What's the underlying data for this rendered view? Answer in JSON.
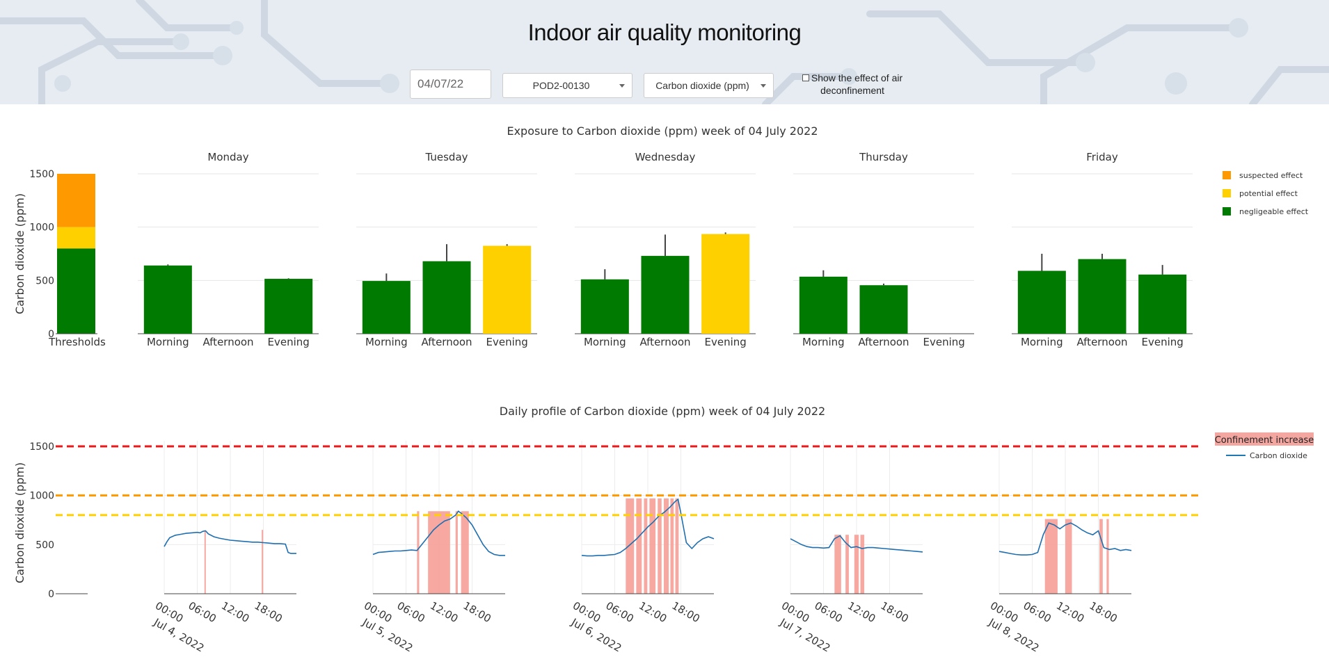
{
  "header": {
    "title": "Indoor air quality monitoring",
    "date_value": "04/07/22",
    "pod_select": "POD2-00130",
    "pollutant_select": "Carbon dioxide (ppm)",
    "deconfinement_checkbox_label": "Show the effect of air deconfinement",
    "deconfinement_checked": false
  },
  "chart_data": [
    {
      "type": "bar",
      "title": "Exposure to Carbon dioxide (ppm) week of 04 July 2022",
      "ylabel": "Carbon dioxide (ppm)",
      "ylim": [
        0,
        1500
      ],
      "yticks": [
        "0",
        "500",
        "1000",
        "1500"
      ],
      "thresholds": {
        "label": "Thresholds",
        "bands": [
          {
            "name": "negligeable effect",
            "from": 0,
            "to": 800,
            "color": "#007a00"
          },
          {
            "name": "potential effect",
            "from": 800,
            "to": 1000,
            "color": "#ffd000"
          },
          {
            "name": "suspected effect",
            "from": 1000,
            "to": 1500,
            "color": "#ff9900"
          }
        ]
      },
      "legend": [
        {
          "name": "suspected effect",
          "color": "#ff9900"
        },
        {
          "name": "potential effect",
          "color": "#ffd000"
        },
        {
          "name": "negligeable effect",
          "color": "#007a00"
        }
      ],
      "legend_position": "right",
      "categories": [
        "Morning",
        "Afternoon",
        "Evening"
      ],
      "days": [
        {
          "name": "Monday",
          "values": [
            640,
            null,
            515
          ],
          "errors": [
            10,
            null,
            5
          ],
          "colors": [
            "#007a00",
            null,
            "#007a00"
          ]
        },
        {
          "name": "Tuesday",
          "values": [
            495,
            680,
            825
          ],
          "errors": [
            70,
            160,
            15
          ],
          "colors": [
            "#007a00",
            "#007a00",
            "#ffd000"
          ]
        },
        {
          "name": "Wednesday",
          "values": [
            510,
            730,
            935
          ],
          "errors": [
            95,
            200,
            15
          ],
          "colors": [
            "#007a00",
            "#007a00",
            "#ffd000"
          ]
        },
        {
          "name": "Thursday",
          "values": [
            535,
            455,
            null
          ],
          "errors": [
            60,
            15,
            null
          ],
          "colors": [
            "#007a00",
            "#007a00",
            null
          ]
        },
        {
          "name": "Friday",
          "values": [
            590,
            700,
            555
          ],
          "errors": [
            160,
            50,
            90
          ],
          "colors": [
            "#007a00",
            "#007a00",
            "#007a00"
          ]
        }
      ]
    },
    {
      "type": "line",
      "title": "Daily profile of Carbon dioxide (ppm) week of 04 July 2022",
      "ylabel": "Carbon dioxide (ppm)",
      "ylim": [
        0,
        1500
      ],
      "yticks": [
        "0",
        "500",
        "1000",
        "1500"
      ],
      "threshold_lines": [
        {
          "value": 1500,
          "color": "#e8191b"
        },
        {
          "value": 1000,
          "color": "#ff9900"
        },
        {
          "value": 800,
          "color": "#ffd000"
        }
      ],
      "legend": [
        {
          "name": "Confinement increase",
          "color": "#f4a6a0"
        },
        {
          "name": "Carbon dioxide",
          "color": "#1f77b4"
        }
      ],
      "legend_position": "top-right",
      "xticks": [
        "00:00",
        "06:00",
        "12:00",
        "18:00"
      ],
      "days": [
        {
          "date_label": "Jul 4, 2022",
          "series": [
            [
              0,
              480
            ],
            [
              0.5,
              530
            ],
            [
              1,
              570
            ],
            [
              2,
              595
            ],
            [
              3,
              605
            ],
            [
              4,
              615
            ],
            [
              5,
              620
            ],
            [
              6,
              625
            ],
            [
              6.5,
              620
            ],
            [
              7,
              635
            ],
            [
              7.5,
              640
            ],
            [
              8,
              610
            ],
            [
              9,
              580
            ],
            [
              10,
              565
            ],
            [
              11,
              555
            ],
            [
              12,
              545
            ],
            [
              13,
              540
            ],
            [
              14,
              535
            ],
            [
              15,
              530
            ],
            [
              16,
              525
            ],
            [
              17,
              525
            ],
            [
              18,
              520
            ],
            [
              19,
              515
            ],
            [
              20,
              510
            ],
            [
              21,
              510
            ],
            [
              22,
              505
            ],
            [
              22.5,
              420
            ],
            [
              23,
              410
            ],
            [
              24,
              410
            ]
          ],
          "confinement": [
            [
              7.3,
              7.5,
              640
            ],
            [
              17.7,
              17.9,
              650
            ]
          ]
        },
        {
          "date_label": "Jul 5, 2022",
          "series": [
            [
              0,
              400
            ],
            [
              1,
              420
            ],
            [
              2,
              425
            ],
            [
              3,
              430
            ],
            [
              4,
              435
            ],
            [
              5,
              435
            ],
            [
              6,
              440
            ],
            [
              7,
              445
            ],
            [
              8,
              440
            ],
            [
              9,
              510
            ],
            [
              10,
              580
            ],
            [
              11,
              650
            ],
            [
              12,
              700
            ],
            [
              13,
              740
            ],
            [
              14,
              760
            ],
            [
              15,
              800
            ],
            [
              15.5,
              840
            ],
            [
              16,
              820
            ],
            [
              17,
              770
            ],
            [
              18,
              700
            ],
            [
              19,
              600
            ],
            [
              20,
              500
            ],
            [
              21,
              430
            ],
            [
              22,
              400
            ],
            [
              23,
              390
            ],
            [
              24,
              390
            ]
          ],
          "confinement": [
            [
              8,
              8.4,
              840
            ],
            [
              10,
              14,
              840
            ],
            [
              15,
              15.4,
              840
            ],
            [
              16,
              17.4,
              840
            ]
          ]
        },
        {
          "date_label": "Jul 6, 2022",
          "series": [
            [
              0,
              390
            ],
            [
              1,
              385
            ],
            [
              2,
              385
            ],
            [
              3,
              390
            ],
            [
              4,
              390
            ],
            [
              5,
              395
            ],
            [
              6,
              400
            ],
            [
              7,
              420
            ],
            [
              8,
              460
            ],
            [
              9,
              510
            ],
            [
              10,
              560
            ],
            [
              11,
              620
            ],
            [
              12,
              680
            ],
            [
              13,
              730
            ],
            [
              14,
              790
            ],
            [
              15,
              830
            ],
            [
              16,
              880
            ],
            [
              17,
              940
            ],
            [
              17.5,
              960
            ],
            [
              18,
              820
            ],
            [
              19,
              520
            ],
            [
              20,
              460
            ],
            [
              21,
              520
            ],
            [
              22,
              560
            ],
            [
              23,
              580
            ],
            [
              24,
              560
            ]
          ],
          "confinement": [
            [
              8,
              9.5,
              970
            ],
            [
              9.9,
              10.9,
              970
            ],
            [
              11.3,
              11.9,
              970
            ],
            [
              12.3,
              13.4,
              970
            ],
            [
              13.8,
              14.5,
              970
            ],
            [
              14.9,
              15.8,
              970
            ],
            [
              16.1,
              16.7,
              970
            ],
            [
              17,
              17.6,
              970
            ]
          ]
        },
        {
          "date_label": "Jul 7, 2022",
          "series": [
            [
              0,
              560
            ],
            [
              1,
              530
            ],
            [
              2,
              500
            ],
            [
              3,
              480
            ],
            [
              4,
              470
            ],
            [
              5,
              470
            ],
            [
              6,
              465
            ],
            [
              7,
              470
            ],
            [
              8,
              560
            ],
            [
              9,
              590
            ],
            [
              10,
              520
            ],
            [
              11,
              470
            ],
            [
              12,
              480
            ],
            [
              13,
              460
            ],
            [
              14,
              470
            ],
            [
              15,
              470
            ],
            [
              16,
              465
            ],
            [
              17,
              460
            ],
            [
              18,
              455
            ],
            [
              19,
              450
            ],
            [
              20,
              445
            ],
            [
              21,
              440
            ],
            [
              22,
              435
            ],
            [
              23,
              430
            ],
            [
              24,
              425
            ]
          ],
          "confinement": [
            [
              8,
              9.2,
              600
            ],
            [
              10,
              10.6,
              600
            ],
            [
              11.6,
              12.4,
              600
            ],
            [
              12.7,
              13.4,
              600
            ]
          ]
        },
        {
          "date_label": "Jul 8, 2022",
          "series": [
            [
              0,
              430
            ],
            [
              1,
              420
            ],
            [
              2,
              410
            ],
            [
              3,
              400
            ],
            [
              4,
              395
            ],
            [
              5,
              395
            ],
            [
              6,
              400
            ],
            [
              7,
              420
            ],
            [
              8,
              600
            ],
            [
              9,
              720
            ],
            [
              10,
              700
            ],
            [
              11,
              660
            ],
            [
              12,
              700
            ],
            [
              13,
              720
            ],
            [
              14,
              690
            ],
            [
              15,
              650
            ],
            [
              16,
              620
            ],
            [
              17,
              600
            ],
            [
              18,
              640
            ],
            [
              19,
              470
            ],
            [
              20,
              450
            ],
            [
              21,
              460
            ],
            [
              22,
              440
            ],
            [
              23,
              450
            ],
            [
              24,
              440
            ]
          ],
          "confinement": [
            [
              8.3,
              10.6,
              760
            ],
            [
              12,
              13.2,
              760
            ],
            [
              18.2,
              18.8,
              760
            ],
            [
              19.5,
              19.9,
              760
            ]
          ]
        }
      ]
    }
  ]
}
